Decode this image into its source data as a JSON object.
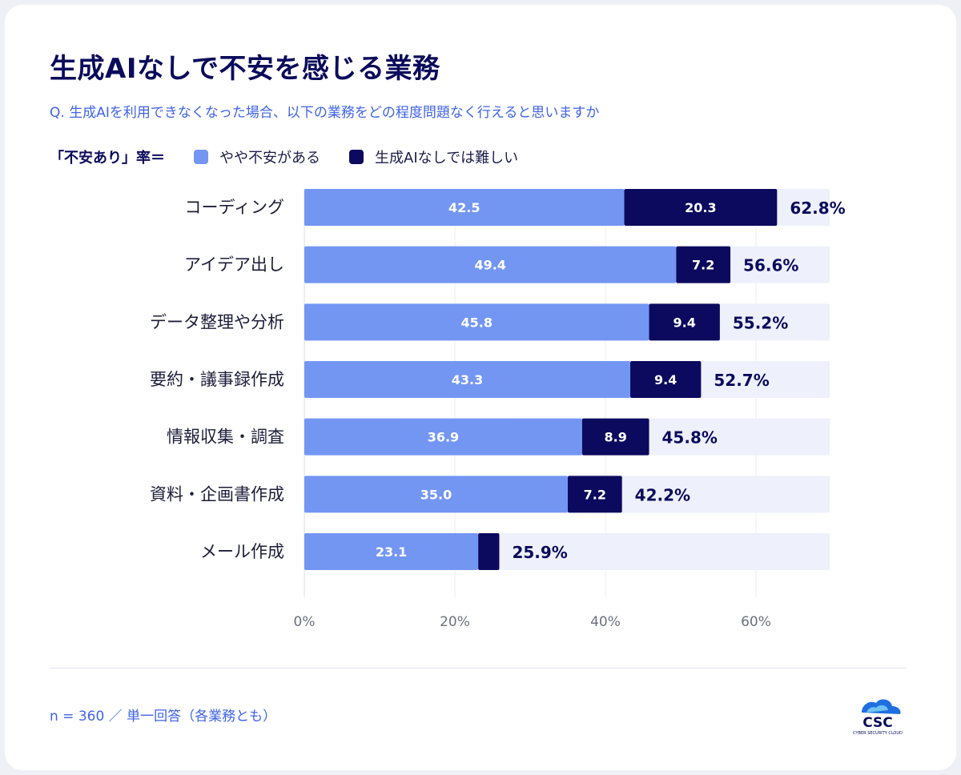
{
  "title": "生成AIなしで不安を感じる業務",
  "subtitle": "Q. 生成AIを利用できなくなった場合、以下の業務をどの程度問題なく行えると思いますか",
  "legend": {
    "prefix": "「不安あり」率＝",
    "items": [
      {
        "label": "やや不安がある",
        "color": "#7396f3"
      },
      {
        "label": "生成AIなしでは難しい",
        "color": "#0b0a5e"
      }
    ]
  },
  "colors": {
    "light": "#7396f3",
    "dark": "#0b0a5e",
    "track": "#eef0fb",
    "tick": "#6b7080",
    "category": "#1d1d3a",
    "total": "#0b0b5c"
  },
  "chart_data": {
    "type": "bar",
    "orientation": "horizontal",
    "stacked": true,
    "categories": [
      "コーディング",
      "アイデア出し",
      "データ整理や分析",
      "要約・議事録作成",
      "情報収集・調査",
      "資料・企画書作成",
      "メール作成"
    ],
    "series": [
      {
        "name": "やや不安がある",
        "values": [
          42.5,
          49.4,
          45.8,
          43.3,
          36.9,
          35.0,
          23.1
        ],
        "labels": [
          "42.5",
          "49.4",
          "45.8",
          "43.3",
          "36.9",
          "35.0",
          "23.1"
        ]
      },
      {
        "name": "生成AIなしでは難しい",
        "values": [
          20.3,
          7.2,
          9.4,
          9.4,
          8.9,
          7.2,
          2.8
        ],
        "labels": [
          "20.3",
          "7.2",
          "9.4",
          "9.4",
          "8.9",
          "7.2",
          ""
        ]
      }
    ],
    "totals": [
      "62.8%",
      "56.6%",
      "55.2%",
      "52.7%",
      "45.8%",
      "42.2%",
      "25.9%"
    ],
    "xlim": [
      0,
      70
    ],
    "xticks": [
      0,
      20,
      40,
      60
    ],
    "xtick_labels": [
      "0%",
      "20%",
      "40%",
      "60%"
    ],
    "grid": true
  },
  "footnote": "n = 360 ／ 単一回答（各業務とも）",
  "logo": {
    "text": "CSC",
    "tagline": "CYBER SECURITY CLOUD"
  }
}
